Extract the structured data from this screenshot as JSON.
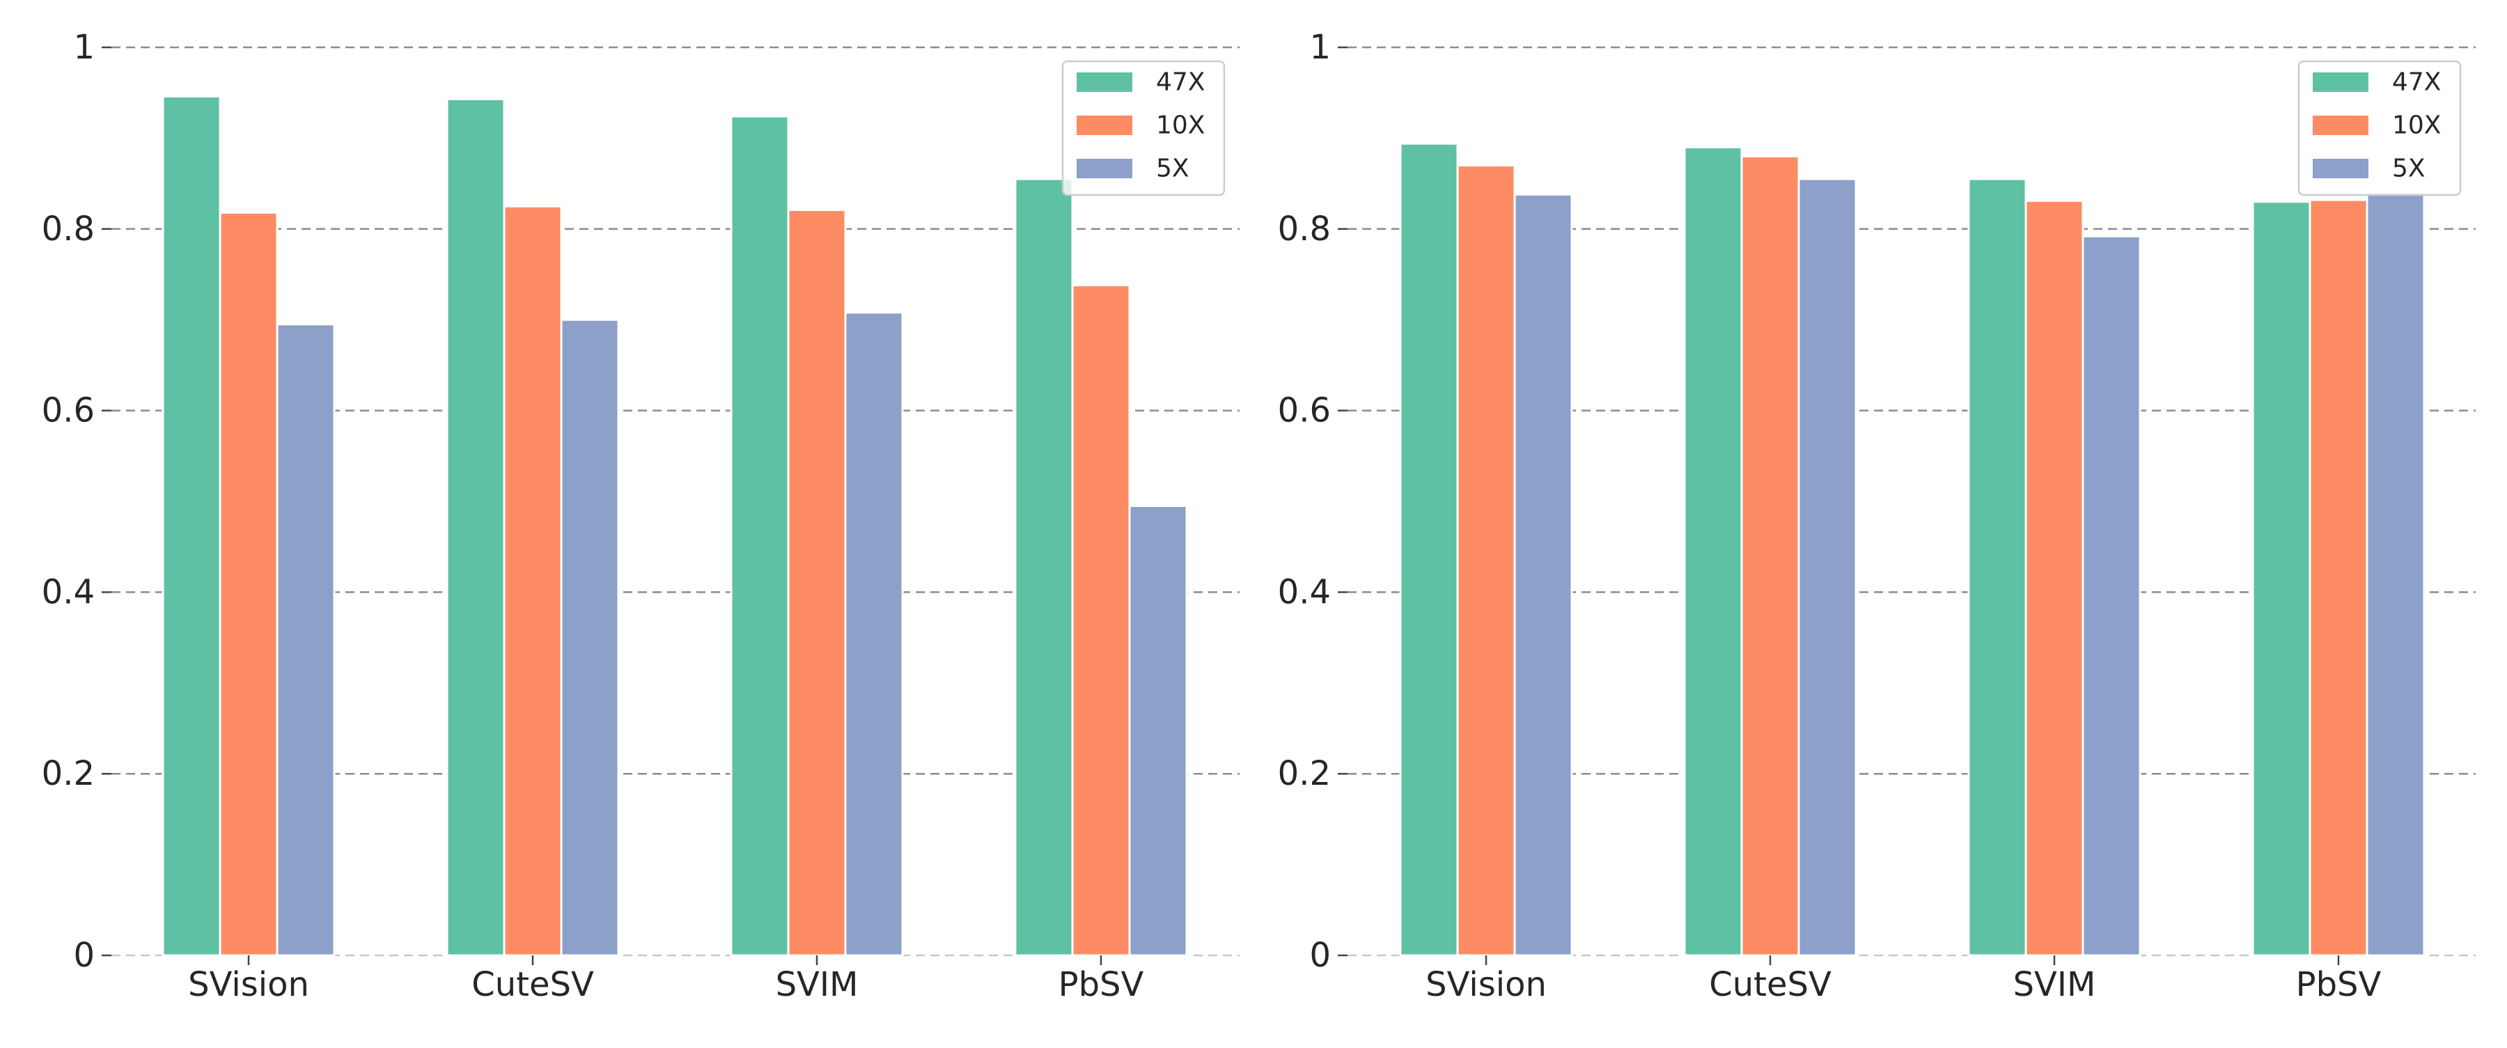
{
  "colors": {
    "47X": "#5fc1a4",
    "10X": "#fd8c65",
    "5X": "#8da0ca"
  },
  "chart_data": [
    {
      "type": "bar",
      "title": "",
      "xlabel": "",
      "ylabel": "",
      "categories": [
        "SVision",
        "CuteSV",
        "SVIM",
        "PbSV"
      ],
      "series": [
        {
          "name": "47X",
          "values": [
            0.946,
            0.943,
            0.924,
            0.855
          ]
        },
        {
          "name": "10X",
          "values": [
            0.818,
            0.825,
            0.821,
            0.738
          ]
        },
        {
          "name": "5X",
          "values": [
            0.695,
            0.7,
            0.708,
            0.495
          ]
        }
      ],
      "ylim": [
        0,
        1
      ],
      "yticks": [
        {
          "value": 0,
          "label": "0"
        },
        {
          "value": 0.2,
          "label": "0.2"
        },
        {
          "value": 0.4,
          "label": "0.4"
        },
        {
          "value": 0.6,
          "label": "0.6"
        },
        {
          "value": 0.8,
          "label": "0.8"
        },
        {
          "value": 1,
          "label": "1"
        }
      ],
      "grid": true,
      "legend": "top-right"
    },
    {
      "type": "bar",
      "title": "",
      "xlabel": "",
      "ylabel": "",
      "categories": [
        "SVision",
        "CuteSV",
        "SVIM",
        "PbSV"
      ],
      "series": [
        {
          "name": "47X",
          "values": [
            0.894,
            0.89,
            0.855,
            0.83
          ]
        },
        {
          "name": "10X",
          "values": [
            0.87,
            0.88,
            0.831,
            0.832
          ]
        },
        {
          "name": "5X",
          "values": [
            0.838,
            0.855,
            0.792,
            0.84
          ]
        }
      ],
      "ylim": [
        0,
        1
      ],
      "yticks": [
        {
          "value": 0,
          "label": "0"
        },
        {
          "value": 0.2,
          "label": "0.2"
        },
        {
          "value": 0.4,
          "label": "0.4"
        },
        {
          "value": 0.6,
          "label": "0.6"
        },
        {
          "value": 0.8,
          "label": "0.8"
        },
        {
          "value": 1,
          "label": "1"
        }
      ],
      "grid": true,
      "legend": "top-right"
    }
  ]
}
